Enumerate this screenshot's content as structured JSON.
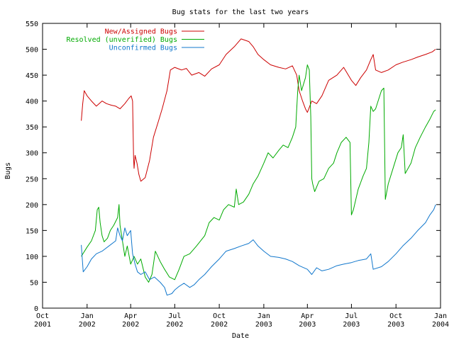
{
  "chart_data": {
    "type": "line",
    "title": "Bug stats for the last two years",
    "xlabel": "Date",
    "ylabel": "Bugs",
    "ylim": [
      0,
      550
    ],
    "yticks": [
      0,
      50,
      100,
      150,
      200,
      250,
      300,
      350,
      400,
      450,
      500,
      550
    ],
    "xlim": [
      "2001-10-01",
      "2004-01-01"
    ],
    "xticks": [
      {
        "date": "2001-10-01",
        "line1": "Oct",
        "line2": "2001"
      },
      {
        "date": "2002-01-01",
        "line1": "Jan",
        "line2": "2002"
      },
      {
        "date": "2002-04-01",
        "line1": "Apr",
        "line2": "2002"
      },
      {
        "date": "2002-07-01",
        "line1": "Jul",
        "line2": "2002"
      },
      {
        "date": "2002-10-01",
        "line1": "Oct",
        "line2": "2002"
      },
      {
        "date": "2003-01-01",
        "line1": "Jan",
        "line2": "2003"
      },
      {
        "date": "2003-04-01",
        "line1": "Apr",
        "line2": "2003"
      },
      {
        "date": "2003-07-01",
        "line1": "Jul",
        "line2": "2003"
      },
      {
        "date": "2003-10-01",
        "line1": "Oct",
        "line2": "2003"
      },
      {
        "date": "2004-01-01",
        "line1": "Jan",
        "line2": "2004"
      }
    ],
    "grid": false,
    "legend": "top-left",
    "series": [
      {
        "name": "New/Assigned Bugs",
        "color": "#cc0000",
        "points": [
          [
            "2001-12-20",
            362
          ],
          [
            "2001-12-23",
            395
          ],
          [
            "2001-12-26",
            420
          ],
          [
            "2002-01-01",
            410
          ],
          [
            "2002-01-10",
            400
          ],
          [
            "2002-01-20",
            390
          ],
          [
            "2002-02-01",
            400
          ],
          [
            "2002-02-10",
            395
          ],
          [
            "2002-02-20",
            392
          ],
          [
            "2002-03-01",
            390
          ],
          [
            "2002-03-10",
            385
          ],
          [
            "2002-03-20",
            395
          ],
          [
            "2002-03-28",
            405
          ],
          [
            "2002-04-02",
            410
          ],
          [
            "2002-04-05",
            400
          ],
          [
            "2002-04-07",
            290
          ],
          [
            "2002-04-08",
            270
          ],
          [
            "2002-04-10",
            295
          ],
          [
            "2002-04-14",
            280
          ],
          [
            "2002-04-18",
            258
          ],
          [
            "2002-04-22",
            245
          ],
          [
            "2002-05-01",
            252
          ],
          [
            "2002-05-10",
            285
          ],
          [
            "2002-05-18",
            330
          ],
          [
            "2002-05-28",
            360
          ],
          [
            "2002-06-05",
            385
          ],
          [
            "2002-06-15",
            420
          ],
          [
            "2002-06-22",
            460
          ],
          [
            "2002-07-01",
            465
          ],
          [
            "2002-07-15",
            460
          ],
          [
            "2002-07-25",
            463
          ],
          [
            "2002-08-05",
            450
          ],
          [
            "2002-08-20",
            455
          ],
          [
            "2002-09-01",
            448
          ],
          [
            "2002-09-15",
            462
          ],
          [
            "2002-10-01",
            470
          ],
          [
            "2002-10-15",
            490
          ],
          [
            "2002-11-01",
            505
          ],
          [
            "2002-11-15",
            520
          ],
          [
            "2002-12-01",
            515
          ],
          [
            "2002-12-10",
            505
          ],
          [
            "2002-12-20",
            490
          ],
          [
            "2003-01-01",
            480
          ],
          [
            "2003-01-15",
            470
          ],
          [
            "2003-02-01",
            465
          ],
          [
            "2003-02-15",
            462
          ],
          [
            "2003-03-01",
            468
          ],
          [
            "2003-03-10",
            450
          ],
          [
            "2003-03-15",
            420
          ],
          [
            "2003-03-22",
            400
          ],
          [
            "2003-03-28",
            385
          ],
          [
            "2003-04-01",
            378
          ],
          [
            "2003-04-10",
            400
          ],
          [
            "2003-04-20",
            395
          ],
          [
            "2003-05-01",
            410
          ],
          [
            "2003-05-15",
            440
          ],
          [
            "2003-06-01",
            450
          ],
          [
            "2003-06-15",
            465
          ],
          [
            "2003-07-01",
            440
          ],
          [
            "2003-07-10",
            430
          ],
          [
            "2003-07-20",
            445
          ],
          [
            "2003-08-01",
            460
          ],
          [
            "2003-08-10",
            480
          ],
          [
            "2003-08-15",
            490
          ],
          [
            "2003-08-20",
            460
          ],
          [
            "2003-09-01",
            455
          ],
          [
            "2003-09-15",
            460
          ],
          [
            "2003-10-01",
            470
          ],
          [
            "2003-10-15",
            475
          ],
          [
            "2003-11-01",
            480
          ],
          [
            "2003-11-15",
            485
          ],
          [
            "2003-12-01",
            490
          ],
          [
            "2003-12-15",
            495
          ],
          [
            "2003-12-22",
            500
          ]
        ]
      },
      {
        "name": "Resolved (unverified) Bugs",
        "color": "#00aa00",
        "points": [
          [
            "2001-12-20",
            100
          ],
          [
            "2002-01-01",
            118
          ],
          [
            "2002-01-10",
            130
          ],
          [
            "2002-01-18",
            150
          ],
          [
            "2002-01-22",
            190
          ],
          [
            "2002-01-25",
            195
          ],
          [
            "2002-01-28",
            165
          ],
          [
            "2002-02-01",
            140
          ],
          [
            "2002-02-05",
            128
          ],
          [
            "2002-02-12",
            135
          ],
          [
            "2002-02-18",
            150
          ],
          [
            "2002-02-25",
            160
          ],
          [
            "2002-03-05",
            175
          ],
          [
            "2002-03-08",
            200
          ],
          [
            "2002-03-10",
            160
          ],
          [
            "2002-03-15",
            130
          ],
          [
            "2002-03-20",
            100
          ],
          [
            "2002-03-25",
            120
          ],
          [
            "2002-04-01",
            85
          ],
          [
            "2002-04-08",
            100
          ],
          [
            "2002-04-15",
            85
          ],
          [
            "2002-04-22",
            95
          ],
          [
            "2002-05-01",
            60
          ],
          [
            "2002-05-08",
            50
          ],
          [
            "2002-05-15",
            65
          ],
          [
            "2002-05-22",
            110
          ],
          [
            "2002-06-01",
            90
          ],
          [
            "2002-06-10",
            75
          ],
          [
            "2002-06-20",
            60
          ],
          [
            "2002-07-01",
            55
          ],
          [
            "2002-07-10",
            75
          ],
          [
            "2002-07-20",
            100
          ],
          [
            "2002-08-01",
            105
          ],
          [
            "2002-08-15",
            120
          ],
          [
            "2002-09-01",
            140
          ],
          [
            "2002-09-10",
            165
          ],
          [
            "2002-09-20",
            175
          ],
          [
            "2002-10-01",
            170
          ],
          [
            "2002-10-10",
            190
          ],
          [
            "2002-10-20",
            200
          ],
          [
            "2002-11-01",
            195
          ],
          [
            "2002-11-05",
            230
          ],
          [
            "2002-11-10",
            200
          ],
          [
            "2002-11-20",
            205
          ],
          [
            "2002-12-01",
            220
          ],
          [
            "2002-12-10",
            240
          ],
          [
            "2002-12-20",
            255
          ],
          [
            "2003-01-01",
            280
          ],
          [
            "2003-01-10",
            300
          ],
          [
            "2003-01-20",
            290
          ],
          [
            "2003-02-01",
            305
          ],
          [
            "2003-02-10",
            315
          ],
          [
            "2003-02-20",
            310
          ],
          [
            "2003-03-01",
            330
          ],
          [
            "2003-03-08",
            350
          ],
          [
            "2003-03-12",
            420
          ],
          [
            "2003-03-15",
            450
          ],
          [
            "2003-03-20",
            420
          ],
          [
            "2003-03-28",
            445
          ],
          [
            "2003-04-01",
            470
          ],
          [
            "2003-04-05",
            460
          ],
          [
            "2003-04-08",
            370
          ],
          [
            "2003-04-10",
            250
          ],
          [
            "2003-04-12",
            240
          ],
          [
            "2003-04-16",
            225
          ],
          [
            "2003-04-25",
            245
          ],
          [
            "2003-05-05",
            250
          ],
          [
            "2003-05-15",
            270
          ],
          [
            "2003-05-25",
            280
          ],
          [
            "2003-06-01",
            300
          ],
          [
            "2003-06-10",
            320
          ],
          [
            "2003-06-20",
            330
          ],
          [
            "2003-06-28",
            320
          ],
          [
            "2003-07-01",
            180
          ],
          [
            "2003-07-05",
            190
          ],
          [
            "2003-07-15",
            230
          ],
          [
            "2003-07-25",
            255
          ],
          [
            "2003-08-01",
            270
          ],
          [
            "2003-08-06",
            320
          ],
          [
            "2003-08-10",
            390
          ],
          [
            "2003-08-15",
            380
          ],
          [
            "2003-08-20",
            385
          ],
          [
            "2003-08-25",
            400
          ],
          [
            "2003-09-01",
            420
          ],
          [
            "2003-09-06",
            425
          ],
          [
            "2003-09-09",
            210
          ],
          [
            "2003-09-15",
            240
          ],
          [
            "2003-09-25",
            270
          ],
          [
            "2003-10-05",
            300
          ],
          [
            "2003-10-12",
            310
          ],
          [
            "2003-10-16",
            335
          ],
          [
            "2003-10-20",
            260
          ],
          [
            "2003-11-01",
            280
          ],
          [
            "2003-11-10",
            310
          ],
          [
            "2003-11-20",
            330
          ],
          [
            "2003-12-01",
            350
          ],
          [
            "2003-12-10",
            365
          ],
          [
            "2003-12-18",
            380
          ],
          [
            "2003-12-22",
            383
          ]
        ]
      },
      {
        "name": "Unconfirmed Bugs",
        "color": "#1177cc",
        "points": [
          [
            "2001-12-20",
            122
          ],
          [
            "2001-12-24",
            70
          ],
          [
            "2002-01-01",
            80
          ],
          [
            "2002-01-10",
            95
          ],
          [
            "2002-01-20",
            105
          ],
          [
            "2002-02-01",
            110
          ],
          [
            "2002-02-15",
            120
          ],
          [
            "2002-03-01",
            130
          ],
          [
            "2002-03-05",
            155
          ],
          [
            "2002-03-10",
            140
          ],
          [
            "2002-03-15",
            130
          ],
          [
            "2002-03-20",
            155
          ],
          [
            "2002-03-25",
            140
          ],
          [
            "2002-04-01",
            150
          ],
          [
            "2002-04-05",
            105
          ],
          [
            "2002-04-10",
            85
          ],
          [
            "2002-04-15",
            70
          ],
          [
            "2002-04-22",
            65
          ],
          [
            "2002-05-01",
            70
          ],
          [
            "2002-05-10",
            55
          ],
          [
            "2002-05-20",
            60
          ],
          [
            "2002-06-01",
            50
          ],
          [
            "2002-06-10",
            40
          ],
          [
            "2002-06-15",
            25
          ],
          [
            "2002-06-25",
            28
          ],
          [
            "2002-07-01",
            35
          ],
          [
            "2002-07-10",
            42
          ],
          [
            "2002-07-20",
            48
          ],
          [
            "2002-08-01",
            40
          ],
          [
            "2002-08-10",
            45
          ],
          [
            "2002-08-20",
            55
          ],
          [
            "2002-09-01",
            65
          ],
          [
            "2002-09-15",
            80
          ],
          [
            "2002-10-01",
            95
          ],
          [
            "2002-10-15",
            110
          ],
          [
            "2002-11-01",
            115
          ],
          [
            "2002-11-15",
            120
          ],
          [
            "2002-12-01",
            125
          ],
          [
            "2002-12-10",
            132
          ],
          [
            "2002-12-20",
            120
          ],
          [
            "2003-01-01",
            110
          ],
          [
            "2003-01-15",
            100
          ],
          [
            "2003-02-01",
            98
          ],
          [
            "2003-02-15",
            95
          ],
          [
            "2003-03-01",
            90
          ],
          [
            "2003-03-15",
            82
          ],
          [
            "2003-04-01",
            75
          ],
          [
            "2003-04-10",
            65
          ],
          [
            "2003-04-20",
            78
          ],
          [
            "2003-05-01",
            72
          ],
          [
            "2003-05-15",
            75
          ],
          [
            "2003-06-01",
            82
          ],
          [
            "2003-06-15",
            85
          ],
          [
            "2003-07-01",
            88
          ],
          [
            "2003-07-15",
            92
          ],
          [
            "2003-08-01",
            95
          ],
          [
            "2003-08-10",
            105
          ],
          [
            "2003-08-15",
            75
          ],
          [
            "2003-09-01",
            80
          ],
          [
            "2003-09-15",
            90
          ],
          [
            "2003-10-01",
            105
          ],
          [
            "2003-10-15",
            120
          ],
          [
            "2003-11-01",
            135
          ],
          [
            "2003-11-15",
            150
          ],
          [
            "2003-12-01",
            165
          ],
          [
            "2003-12-10",
            180
          ],
          [
            "2003-12-18",
            190
          ],
          [
            "2003-12-22",
            200
          ]
        ]
      }
    ]
  }
}
